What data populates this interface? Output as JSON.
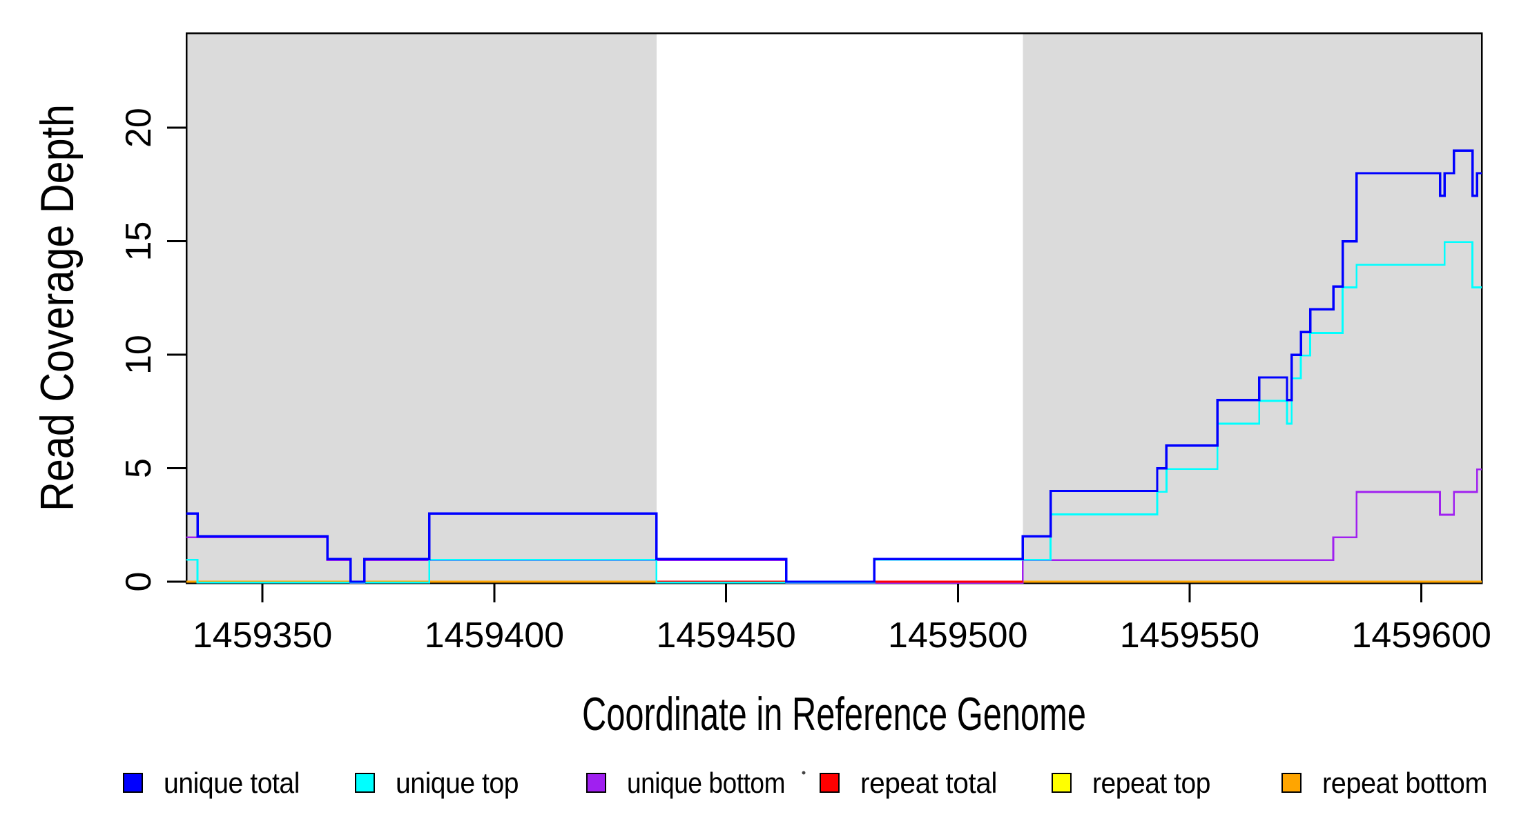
{
  "chart_data": {
    "type": "line",
    "subtype": "step",
    "title": "",
    "xlabel": "Coordinate in Reference Genome",
    "ylabel": "Read Coverage Depth",
    "xlim": [
      1459333.6,
      1459613.0
    ],
    "ylim": [
      -0.06,
      24.17
    ],
    "x_ticks": [
      1459350,
      1459400,
      1459450,
      1459500,
      1459550,
      1459600
    ],
    "y_ticks": [
      0,
      5,
      10,
      15,
      20
    ],
    "grid": false,
    "legend_position": "bottom",
    "shade_color": "#DBDBDB",
    "shaded_regions": [
      {
        "x0": 1459333.6,
        "x1": 1459435
      },
      {
        "x0": 1459514,
        "x1": 1459613
      }
    ],
    "series": [
      {
        "name": "unique total",
        "color": "#0000FF",
        "steps": [
          [
            1459333.6,
            3
          ],
          [
            1459336,
            2
          ],
          [
            1459364,
            1
          ],
          [
            1459369,
            0
          ],
          [
            1459372,
            1
          ],
          [
            1459386,
            3
          ],
          [
            1459435,
            1
          ],
          [
            1459463,
            0
          ],
          [
            1459482,
            1
          ],
          [
            1459514,
            2
          ],
          [
            1459520,
            4
          ],
          [
            1459543,
            5
          ],
          [
            1459545,
            6
          ],
          [
            1459556,
            8
          ],
          [
            1459565,
            9
          ],
          [
            1459571,
            8
          ],
          [
            1459572,
            10
          ],
          [
            1459574,
            11
          ],
          [
            1459576,
            12
          ],
          [
            1459581,
            13
          ],
          [
            1459583,
            15
          ],
          [
            1459586,
            18
          ],
          [
            1459604,
            17
          ],
          [
            1459605,
            18
          ],
          [
            1459607,
            19
          ],
          [
            1459611,
            17
          ],
          [
            1459612,
            18
          ]
        ]
      },
      {
        "name": "unique top",
        "color": "#00FFFF",
        "steps": [
          [
            1459333.6,
            1
          ],
          [
            1459336,
            0
          ],
          [
            1459386,
            1
          ],
          [
            1459435,
            0
          ],
          [
            1459482,
            1
          ],
          [
            1459520,
            3
          ],
          [
            1459543,
            4
          ],
          [
            1459545,
            5
          ],
          [
            1459556,
            7
          ],
          [
            1459565,
            8
          ],
          [
            1459571,
            7
          ],
          [
            1459572,
            9
          ],
          [
            1459574,
            10
          ],
          [
            1459576,
            11
          ],
          [
            1459583,
            13
          ],
          [
            1459586,
            14
          ],
          [
            1459605,
            15
          ],
          [
            1459611,
            13
          ]
        ]
      },
      {
        "name": "unique bottom",
        "color": "#A020F0",
        "steps": [
          [
            1459333.6,
            2
          ],
          [
            1459364,
            1
          ],
          [
            1459369,
            0
          ],
          [
            1459372,
            1
          ],
          [
            1459463,
            0
          ],
          [
            1459514,
            1
          ],
          [
            1459581,
            2
          ],
          [
            1459586,
            4
          ],
          [
            1459604,
            3
          ],
          [
            1459607,
            4
          ],
          [
            1459612,
            5
          ]
        ]
      },
      {
        "name": "repeat total",
        "color": "#FF0000",
        "steps": [
          [
            1459435,
            0
          ]
        ],
        "x_end": 1459514
      },
      {
        "name": "repeat top",
        "color": "#FFFF00",
        "steps": [
          [
            1459333.6,
            0
          ]
        ]
      },
      {
        "name": "repeat bottom",
        "color": "#FFA500",
        "steps": [
          [
            1459333.6,
            0
          ]
        ]
      }
    ]
  },
  "legend": {
    "items": [
      {
        "label": "unique total",
        "color": "#0000FF"
      },
      {
        "label": "unique top",
        "color": "#00FFFF"
      },
      {
        "label": "unique bottom",
        "color": "#A020F0"
      },
      {
        "label": "repeat total",
        "color": "#FF0000"
      },
      {
        "label": "repeat top",
        "color": "#FFFF00"
      },
      {
        "label": "repeat bottom",
        "color": "#FFA500"
      }
    ]
  }
}
